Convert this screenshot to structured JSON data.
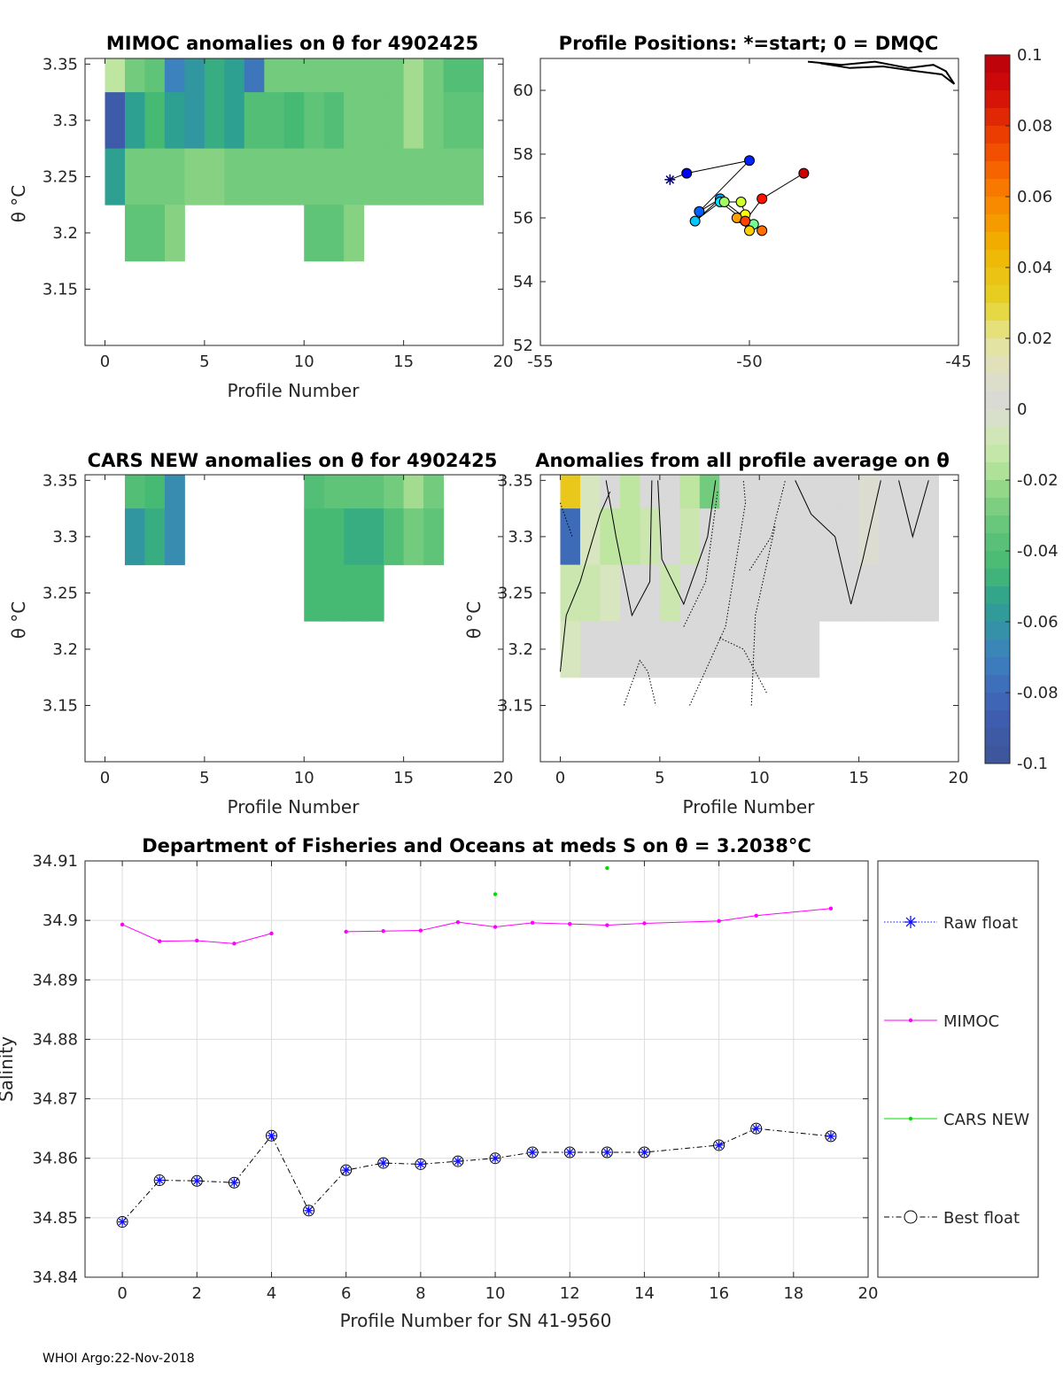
{
  "footer": "WHOI Argo:22-Nov-2018",
  "colors": {
    "mimoc": "#ff00ff",
    "cars": "#00dd00",
    "raw": "#1010ff",
    "best": "#000000",
    "grid": "#dddddd",
    "axis": "#262626"
  },
  "chart_data": [
    {
      "id": "mimoc",
      "type": "heatmap",
      "title": "MIMOC anomalies on θ  for 4902425",
      "xlabel": "Profile Number",
      "ylabel": "θ °C",
      "xlim": [
        -1,
        20
      ],
      "ylim": [
        3.1,
        3.355
      ],
      "xticks": [
        0,
        5,
        10,
        15,
        20
      ],
      "yticks": [
        3.15,
        3.2,
        3.25,
        3.3,
        3.35
      ],
      "cells": [
        [
          0,
          3.35,
          -0.015
        ],
        [
          1,
          3.35,
          -0.03
        ],
        [
          2,
          3.35,
          -0.035
        ],
        [
          3,
          3.35,
          -0.07
        ],
        [
          4,
          3.35,
          -0.06
        ],
        [
          5,
          3.35,
          -0.05
        ],
        [
          6,
          3.35,
          -0.055
        ],
        [
          7,
          3.35,
          -0.075
        ],
        [
          8,
          3.35,
          -0.03
        ],
        [
          9,
          3.35,
          -0.03
        ],
        [
          10,
          3.35,
          -0.03
        ],
        [
          11,
          3.35,
          -0.03
        ],
        [
          12,
          3.35,
          -0.03
        ],
        [
          13,
          3.35,
          -0.03
        ],
        [
          14,
          3.35,
          -0.03
        ],
        [
          15,
          3.35,
          -0.02
        ],
        [
          16,
          3.35,
          -0.03
        ],
        [
          17,
          3.35,
          -0.04
        ],
        [
          18,
          3.35,
          -0.04
        ],
        [
          0,
          3.3,
          -0.09
        ],
        [
          1,
          3.3,
          -0.055
        ],
        [
          2,
          3.3,
          -0.045
        ],
        [
          3,
          3.3,
          -0.055
        ],
        [
          4,
          3.3,
          -0.06
        ],
        [
          5,
          3.3,
          -0.05
        ],
        [
          6,
          3.3,
          -0.055
        ],
        [
          7,
          3.3,
          -0.04
        ],
        [
          8,
          3.3,
          -0.04
        ],
        [
          9,
          3.3,
          -0.045
        ],
        [
          10,
          3.3,
          -0.035
        ],
        [
          11,
          3.3,
          -0.04
        ],
        [
          12,
          3.3,
          -0.03
        ],
        [
          13,
          3.3,
          -0.03
        ],
        [
          14,
          3.3,
          -0.03
        ],
        [
          15,
          3.3,
          -0.02
        ],
        [
          16,
          3.3,
          -0.03
        ],
        [
          17,
          3.3,
          -0.035
        ],
        [
          18,
          3.3,
          -0.035
        ],
        [
          0,
          3.25,
          -0.055
        ],
        [
          1,
          3.25,
          -0.03
        ],
        [
          2,
          3.25,
          -0.03
        ],
        [
          3,
          3.25,
          -0.03
        ],
        [
          4,
          3.25,
          -0.025
        ],
        [
          5,
          3.25,
          -0.025
        ],
        [
          6,
          3.25,
          -0.03
        ],
        [
          7,
          3.25,
          -0.03
        ],
        [
          8,
          3.25,
          -0.03
        ],
        [
          9,
          3.25,
          -0.03
        ],
        [
          10,
          3.25,
          -0.03
        ],
        [
          11,
          3.25,
          -0.03
        ],
        [
          12,
          3.25,
          -0.03
        ],
        [
          13,
          3.25,
          -0.03
        ],
        [
          14,
          3.25,
          -0.03
        ],
        [
          15,
          3.25,
          -0.03
        ],
        [
          16,
          3.25,
          -0.03
        ],
        [
          17,
          3.25,
          -0.03
        ],
        [
          18,
          3.25,
          -0.03
        ],
        [
          1,
          3.2,
          -0.035
        ],
        [
          2,
          3.2,
          -0.035
        ],
        [
          3,
          3.2,
          -0.025
        ],
        [
          10,
          3.2,
          -0.035
        ],
        [
          11,
          3.2,
          -0.035
        ],
        [
          12,
          3.2,
          -0.025
        ]
      ]
    },
    {
      "id": "positions",
      "type": "scatter",
      "title": "Profile Positions: *=start; 0 = DMQC",
      "xlim": [
        -55,
        -45
      ],
      "ylim": [
        52,
        61
      ],
      "xticks": [
        -55,
        -50,
        -45
      ],
      "yticks": [
        52,
        54,
        56,
        58,
        60
      ],
      "start": [
        -51.9,
        57.2
      ],
      "track": [
        [
          -51.9,
          57.2
        ],
        [
          -51.5,
          57.4
        ],
        [
          -50.0,
          57.8
        ],
        [
          -51.2,
          56.2
        ],
        [
          -50.7,
          56.6
        ],
        [
          -51.3,
          55.9
        ],
        [
          -50.7,
          56.5
        ],
        [
          -50.2,
          56.0
        ],
        [
          -49.9,
          55.8
        ],
        [
          -50.6,
          56.5
        ],
        [
          -50.2,
          56.5
        ],
        [
          -50.1,
          56.1
        ],
        [
          -50.0,
          55.6
        ],
        [
          -50.3,
          56.0
        ],
        [
          -49.7,
          55.6
        ],
        [
          -50.1,
          55.9
        ],
        [
          -49.7,
          56.6
        ],
        [
          -48.7,
          57.4
        ]
      ],
      "coast": [
        [
          -48.6,
          60.9
        ],
        [
          -47.8,
          60.8
        ],
        [
          -47.0,
          60.9
        ],
        [
          -46.2,
          60.7
        ],
        [
          -45.6,
          60.8
        ],
        [
          -45.3,
          60.6
        ],
        [
          -45.1,
          60.2
        ],
        [
          -45.4,
          60.5
        ],
        [
          -46.0,
          60.6
        ],
        [
          -46.8,
          60.75
        ],
        [
          -47.6,
          60.7
        ],
        [
          -48.3,
          60.85
        ]
      ]
    },
    {
      "id": "cars",
      "type": "heatmap",
      "title": "CARS NEW anomalies on θ for 4902425",
      "xlabel": "Profile Number",
      "ylabel": "θ °C",
      "xlim": [
        -1,
        20
      ],
      "ylim": [
        3.1,
        3.355
      ],
      "xticks": [
        0,
        5,
        10,
        15,
        20
      ],
      "yticks": [
        3.15,
        3.2,
        3.25,
        3.3,
        3.35
      ],
      "cells": [
        [
          1,
          3.35,
          -0.04
        ],
        [
          2,
          3.35,
          -0.045
        ],
        [
          3,
          3.35,
          -0.065
        ],
        [
          1,
          3.3,
          -0.06
        ],
        [
          2,
          3.3,
          -0.05
        ],
        [
          3,
          3.3,
          -0.065
        ],
        [
          10,
          3.35,
          -0.04
        ],
        [
          11,
          3.35,
          -0.035
        ],
        [
          12,
          3.35,
          -0.035
        ],
        [
          13,
          3.35,
          -0.035
        ],
        [
          14,
          3.35,
          -0.03
        ],
        [
          15,
          3.35,
          -0.02
        ],
        [
          16,
          3.35,
          -0.03
        ],
        [
          10,
          3.3,
          -0.045
        ],
        [
          11,
          3.3,
          -0.045
        ],
        [
          12,
          3.3,
          -0.05
        ],
        [
          13,
          3.3,
          -0.05
        ],
        [
          14,
          3.3,
          -0.04
        ],
        [
          15,
          3.3,
          -0.03
        ],
        [
          16,
          3.3,
          -0.035
        ],
        [
          10,
          3.25,
          -0.045
        ],
        [
          11,
          3.25,
          -0.045
        ],
        [
          12,
          3.25,
          -0.045
        ],
        [
          13,
          3.25,
          -0.045
        ]
      ]
    },
    {
      "id": "avg",
      "type": "heatmap",
      "title": "Anomalies from all profile average on θ",
      "xlabel": "Profile Number",
      "ylabel": "θ °C",
      "xlim": [
        -1,
        20
      ],
      "ylim": [
        3.1,
        3.355
      ],
      "xticks": [
        0,
        5,
        10,
        15,
        20
      ],
      "yticks": [
        3.15,
        3.2,
        3.25,
        3.3,
        3.35
      ],
      "cells": [
        [
          0,
          3.35,
          0.035
        ],
        [
          1,
          3.35,
          -0.005
        ],
        [
          2,
          3.35,
          0.0
        ],
        [
          3,
          3.35,
          -0.015
        ],
        [
          4,
          3.35,
          0.0
        ],
        [
          5,
          3.35,
          0.0
        ],
        [
          6,
          3.35,
          -0.015
        ],
        [
          7,
          3.35,
          -0.03
        ],
        [
          8,
          3.35,
          0.0
        ],
        [
          9,
          3.35,
          0.0
        ],
        [
          10,
          3.35,
          0.0
        ],
        [
          11,
          3.35,
          0.0
        ],
        [
          12,
          3.35,
          0.0
        ],
        [
          13,
          3.35,
          0.0
        ],
        [
          14,
          3.35,
          0.0
        ],
        [
          15,
          3.35,
          0.005
        ],
        [
          16,
          3.35,
          0.0
        ],
        [
          17,
          3.35,
          0.0
        ],
        [
          18,
          3.35,
          0.0
        ],
        [
          0,
          3.3,
          -0.08
        ],
        [
          1,
          3.3,
          -0.005
        ],
        [
          2,
          3.3,
          -0.015
        ],
        [
          3,
          3.3,
          -0.015
        ],
        [
          4,
          3.3,
          -0.01
        ],
        [
          5,
          3.3,
          0.0
        ],
        [
          6,
          3.3,
          -0.01
        ],
        [
          7,
          3.3,
          0.0
        ],
        [
          8,
          3.3,
          0.0
        ],
        [
          9,
          3.3,
          0.0
        ],
        [
          10,
          3.3,
          0.0
        ],
        [
          11,
          3.3,
          0.0
        ],
        [
          12,
          3.3,
          0.0
        ],
        [
          13,
          3.3,
          0.0
        ],
        [
          14,
          3.3,
          0.0
        ],
        [
          15,
          3.3,
          0.005
        ],
        [
          16,
          3.3,
          0.0
        ],
        [
          17,
          3.3,
          0.0
        ],
        [
          18,
          3.3,
          0.0
        ],
        [
          0,
          3.25,
          -0.01
        ],
        [
          1,
          3.25,
          -0.01
        ],
        [
          2,
          3.25,
          -0.005
        ],
        [
          3,
          3.25,
          0.0
        ],
        [
          4,
          3.25,
          0.0
        ],
        [
          5,
          3.25,
          -0.01
        ],
        [
          6,
          3.25,
          0.0
        ],
        [
          7,
          3.25,
          0.0
        ],
        [
          8,
          3.25,
          0.0
        ],
        [
          9,
          3.25,
          0.0
        ],
        [
          10,
          3.25,
          0.0
        ],
        [
          11,
          3.25,
          0.0
        ],
        [
          12,
          3.25,
          0.0
        ],
        [
          13,
          3.25,
          0.0
        ],
        [
          14,
          3.25,
          0.0
        ],
        [
          15,
          3.25,
          0.0
        ],
        [
          16,
          3.25,
          0.0
        ],
        [
          17,
          3.25,
          0.0
        ],
        [
          18,
          3.25,
          0.0
        ],
        [
          0,
          3.2,
          -0.005
        ],
        [
          1,
          3.2,
          0.0
        ],
        [
          2,
          3.2,
          0.0
        ],
        [
          3,
          3.2,
          0.0
        ],
        [
          4,
          3.2,
          0.0
        ],
        [
          5,
          3.2,
          0.0
        ],
        [
          6,
          3.2,
          0.0
        ],
        [
          7,
          3.2,
          0.0
        ],
        [
          8,
          3.2,
          0.0
        ],
        [
          9,
          3.2,
          0.0
        ],
        [
          10,
          3.2,
          0.0
        ],
        [
          11,
          3.2,
          0.0
        ],
        [
          12,
          3.2,
          0.0
        ]
      ]
    },
    {
      "id": "colorbar",
      "type": "colorbar",
      "clim": [
        -0.1,
        0.1
      ],
      "tick_labels": [
        "0.1",
        "0.08",
        "0.06",
        "0.04",
        "0.02",
        "0",
        "-0.02",
        "-0.04",
        "-0.06",
        "-0.08",
        "-0.1"
      ],
      "tick_values": [
        0.1,
        0.08,
        0.06,
        0.04,
        0.02,
        0,
        -0.02,
        -0.04,
        -0.06,
        -0.08,
        -0.1
      ]
    },
    {
      "id": "salinity",
      "type": "line",
      "title": "Department of Fisheries and Oceans at meds S on θ = 3.2038°C",
      "xlabel": "Profile Number for SN 41-9560",
      "ylabel": "Salinity",
      "xlim": [
        -1,
        20
      ],
      "ylim": [
        34.84,
        34.91
      ],
      "xticks": [
        0,
        2,
        4,
        6,
        8,
        10,
        12,
        14,
        16,
        18,
        20
      ],
      "yticks": [
        34.84,
        34.85,
        34.86,
        34.87,
        34.88,
        34.89,
        34.9,
        34.91
      ],
      "ytick_labels": [
        "34.84",
        "34.85",
        "34.86",
        "34.87",
        "34.88",
        "34.89",
        "34.9",
        "34.91"
      ],
      "series": [
        {
          "name": "MIMOC",
          "x": [
            0,
            1,
            2,
            3,
            4,
            null,
            6,
            7,
            8,
            9,
            10,
            11,
            12,
            13,
            14,
            16,
            17,
            19
          ],
          "y": [
            34.8993,
            34.8965,
            34.8966,
            34.8961,
            34.8978,
            null,
            34.8981,
            34.8982,
            34.8983,
            34.8997,
            34.8989,
            34.8996,
            34.8994,
            34.8992,
            34.8995,
            34.8999,
            34.9008,
            34.902
          ]
        },
        {
          "name": "CARS NEW",
          "x": [
            10,
            13
          ],
          "y": [
            34.9044,
            34.9088
          ]
        },
        {
          "name": "Raw float",
          "x": [
            0,
            1,
            2,
            3,
            4,
            5,
            6,
            7,
            8,
            9,
            10,
            11,
            12,
            13,
            14,
            16,
            17,
            19
          ],
          "y": [
            34.8493,
            34.8563,
            34.8562,
            34.8559,
            34.8638,
            34.8512,
            34.858,
            34.8592,
            34.859,
            34.8595,
            34.86,
            34.861,
            34.861,
            34.861,
            34.861,
            34.8622,
            34.865,
            34.8637
          ]
        },
        {
          "name": "Best float",
          "x": [
            0,
            1,
            2,
            3,
            4,
            5,
            6,
            7,
            8,
            9,
            10,
            11,
            12,
            13,
            14,
            16,
            17,
            19
          ],
          "y": [
            34.8493,
            34.8563,
            34.8562,
            34.8559,
            34.8638,
            34.8512,
            34.858,
            34.8592,
            34.859,
            34.8595,
            34.86,
            34.861,
            34.861,
            34.861,
            34.861,
            34.8622,
            34.865,
            34.8637
          ]
        }
      ],
      "legend": [
        "Raw float",
        "MIMOC",
        "CARS NEW",
        "Best float"
      ]
    }
  ]
}
